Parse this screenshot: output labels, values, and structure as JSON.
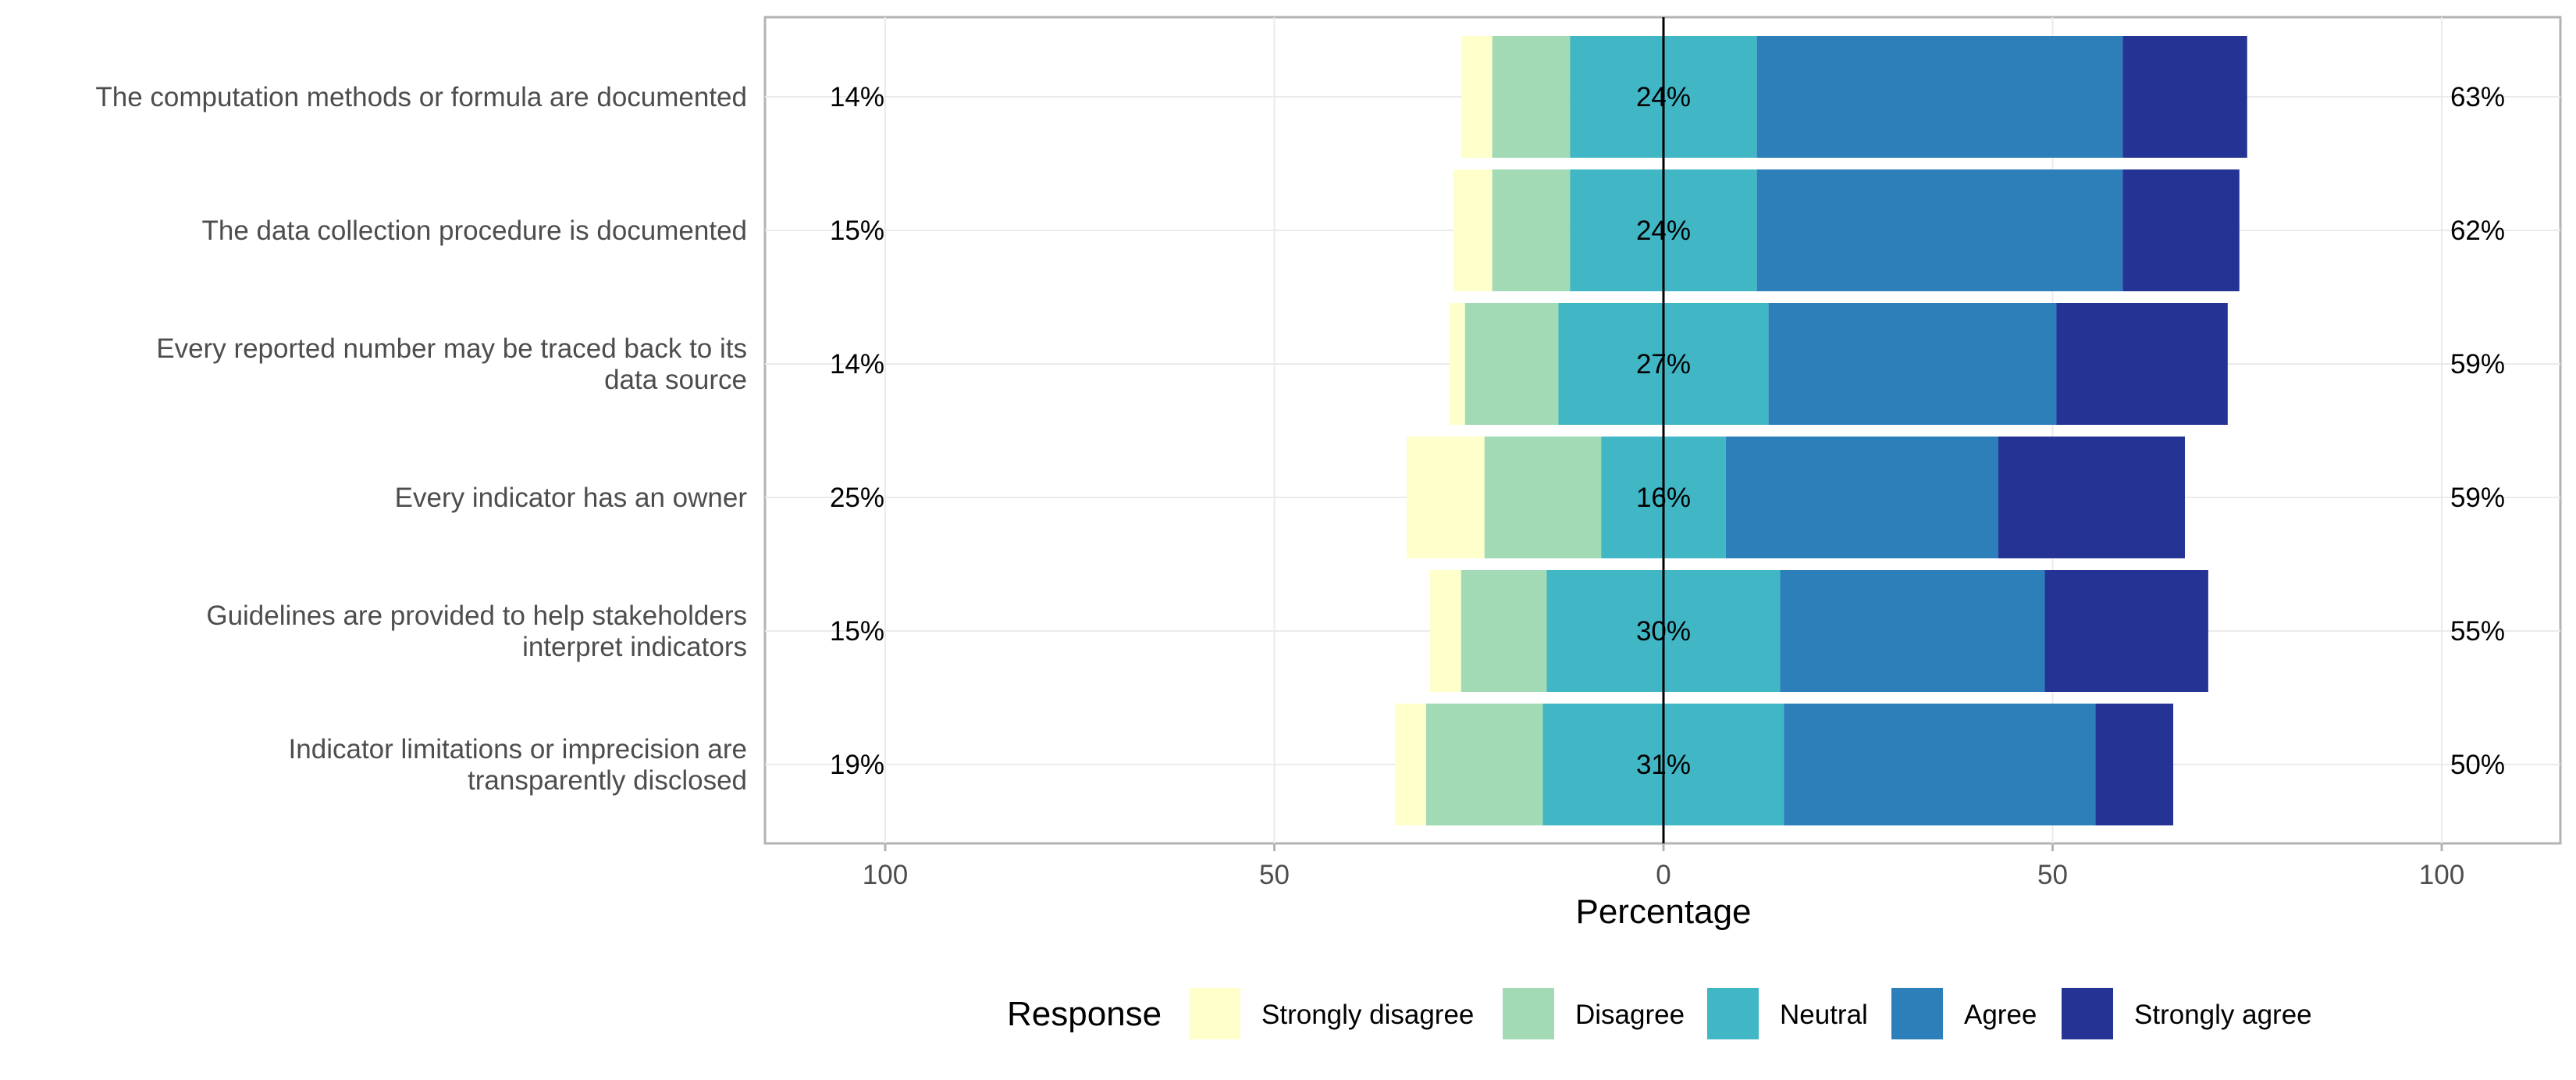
{
  "chart_data": {
    "type": "bar",
    "orientation": "horizontal",
    "stacking": "diverging",
    "xlabel": "Percentage",
    "xlim": [
      -100,
      100
    ],
    "x_ticks": [
      -100,
      -50,
      0,
      50,
      100
    ],
    "x_tick_labels": [
      "100",
      "50",
      "0",
      "50",
      "100"
    ],
    "grid": true,
    "legend_position": "bottom",
    "legend_title": "Response",
    "categories": [
      "The computation methods or formula are documented",
      "The data collection procedure is documented",
      "Every reported number may be traced back to its data source",
      "Every indicator has an owner",
      "Guidelines are provided to help stakeholders interpret indicators",
      "Indicator limitations or imprecision are transparently disclosed"
    ],
    "category_lines": [
      [
        "The computation methods or formula are documented"
      ],
      [
        "The data collection procedure is documented"
      ],
      [
        "Every reported number may be traced back to its",
        "data source"
      ],
      [
        "Every indicator has an owner"
      ],
      [
        "Guidelines are provided to help stakeholders",
        "interpret indicators"
      ],
      [
        "Indicator limitations or imprecision are",
        "transparently disclosed"
      ]
    ],
    "series": [
      {
        "name": "Strongly disagree",
        "color": "#ffffcc",
        "values": [
          4,
          5,
          2,
          10,
          4,
          4
        ]
      },
      {
        "name": "Disagree",
        "color": "#a1dab4",
        "values": [
          10,
          10,
          12,
          15,
          11,
          15
        ]
      },
      {
        "name": "Neutral",
        "color": "#41b6c4",
        "values": [
          24,
          24,
          27,
          16,
          30,
          31
        ]
      },
      {
        "name": "Agree",
        "color": "#2c7fb8",
        "values": [
          47,
          47,
          37,
          35,
          34,
          40
        ]
      },
      {
        "name": "Strongly agree",
        "color": "#253494",
        "values": [
          16,
          15,
          22,
          24,
          21,
          10
        ]
      }
    ],
    "left_labels": [
      "14%",
      "15%",
      "14%",
      "25%",
      "15%",
      "19%"
    ],
    "center_labels": [
      "24%",
      "24%",
      "27%",
      "16%",
      "30%",
      "31%"
    ],
    "right_labels": [
      "63%",
      "62%",
      "59%",
      "59%",
      "55%",
      "50%"
    ]
  }
}
